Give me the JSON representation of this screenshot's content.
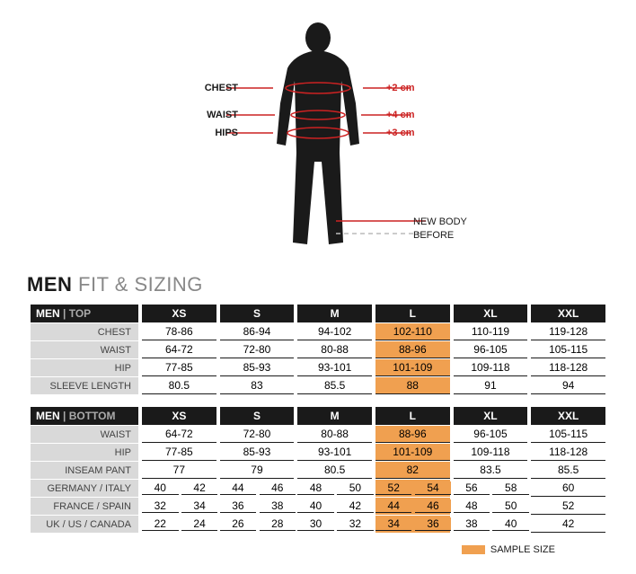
{
  "figure": {
    "labels_left": [
      "CHEST",
      "WAIST",
      "HIPS"
    ],
    "labels_right": [
      "+2 cm",
      "+4 cm",
      "+3 cm"
    ],
    "legend_line1": "NEW BODY",
    "legend_line2": "BEFORE",
    "silhouette_color": "#1a1a1a",
    "line_color_new": "#cc2222",
    "line_color_old": "#cccccc"
  },
  "heading": {
    "bold": "MEN",
    "light": "FIT & SIZING"
  },
  "sizes": [
    "XS",
    "S",
    "M",
    "L",
    "XL",
    "XXL"
  ],
  "hi_index": 3,
  "top": {
    "label_main": "MEN",
    "label_sub": "TOP",
    "rows": [
      {
        "label": "CHEST",
        "cells": [
          "78-86",
          "86-94",
          "94-102",
          "102-110",
          "110-119",
          "119-128"
        ]
      },
      {
        "label": "WAIST",
        "cells": [
          "64-72",
          "72-80",
          "80-88",
          "88-96",
          "96-105",
          "105-115"
        ]
      },
      {
        "label": "HIP",
        "cells": [
          "77-85",
          "85-93",
          "93-101",
          "101-109",
          "109-118",
          "118-128"
        ]
      },
      {
        "label": "SLEEVE LENGTH",
        "cells": [
          "80.5",
          "83",
          "85.5",
          "88",
          "91",
          "94"
        ]
      }
    ]
  },
  "bottom": {
    "label_main": "MEN",
    "label_sub": "BOTTOM",
    "rows": [
      {
        "label": "WAIST",
        "cells": [
          "64-72",
          "72-80",
          "80-88",
          "88-96",
          "96-105",
          "105-115"
        ]
      },
      {
        "label": "HIP",
        "cells": [
          "77-85",
          "85-93",
          "93-101",
          "101-109",
          "109-118",
          "118-128"
        ]
      },
      {
        "label": "INSEAM PANT",
        "cells": [
          "77",
          "79",
          "80.5",
          "82",
          "83.5",
          "85.5"
        ]
      },
      {
        "label": "GERMANY / ITALY",
        "split": true,
        "cells": [
          [
            "40",
            "42"
          ],
          [
            "44",
            "46"
          ],
          [
            "48",
            "50"
          ],
          [
            "52",
            "54"
          ],
          [
            "56",
            "58"
          ],
          [
            "60"
          ]
        ]
      },
      {
        "label": "FRANCE / SPAIN",
        "split": true,
        "cells": [
          [
            "32",
            "34"
          ],
          [
            "36",
            "38"
          ],
          [
            "40",
            "42"
          ],
          [
            "44",
            "46"
          ],
          [
            "48",
            "50"
          ],
          [
            "52"
          ]
        ]
      },
      {
        "label": "UK / US / CANADA",
        "split": true,
        "cells": [
          [
            "22",
            "24"
          ],
          [
            "26",
            "28"
          ],
          [
            "30",
            "32"
          ],
          [
            "34",
            "36"
          ],
          [
            "38",
            "40"
          ],
          [
            "42"
          ]
        ]
      }
    ]
  },
  "sample_label": "SAMPLE SIZE",
  "colors": {
    "header_bg": "#1a1a1a",
    "rowlbl_bg": "#d9d9d9",
    "highlight": "#f0a050",
    "underline": "#1a1a1a"
  }
}
